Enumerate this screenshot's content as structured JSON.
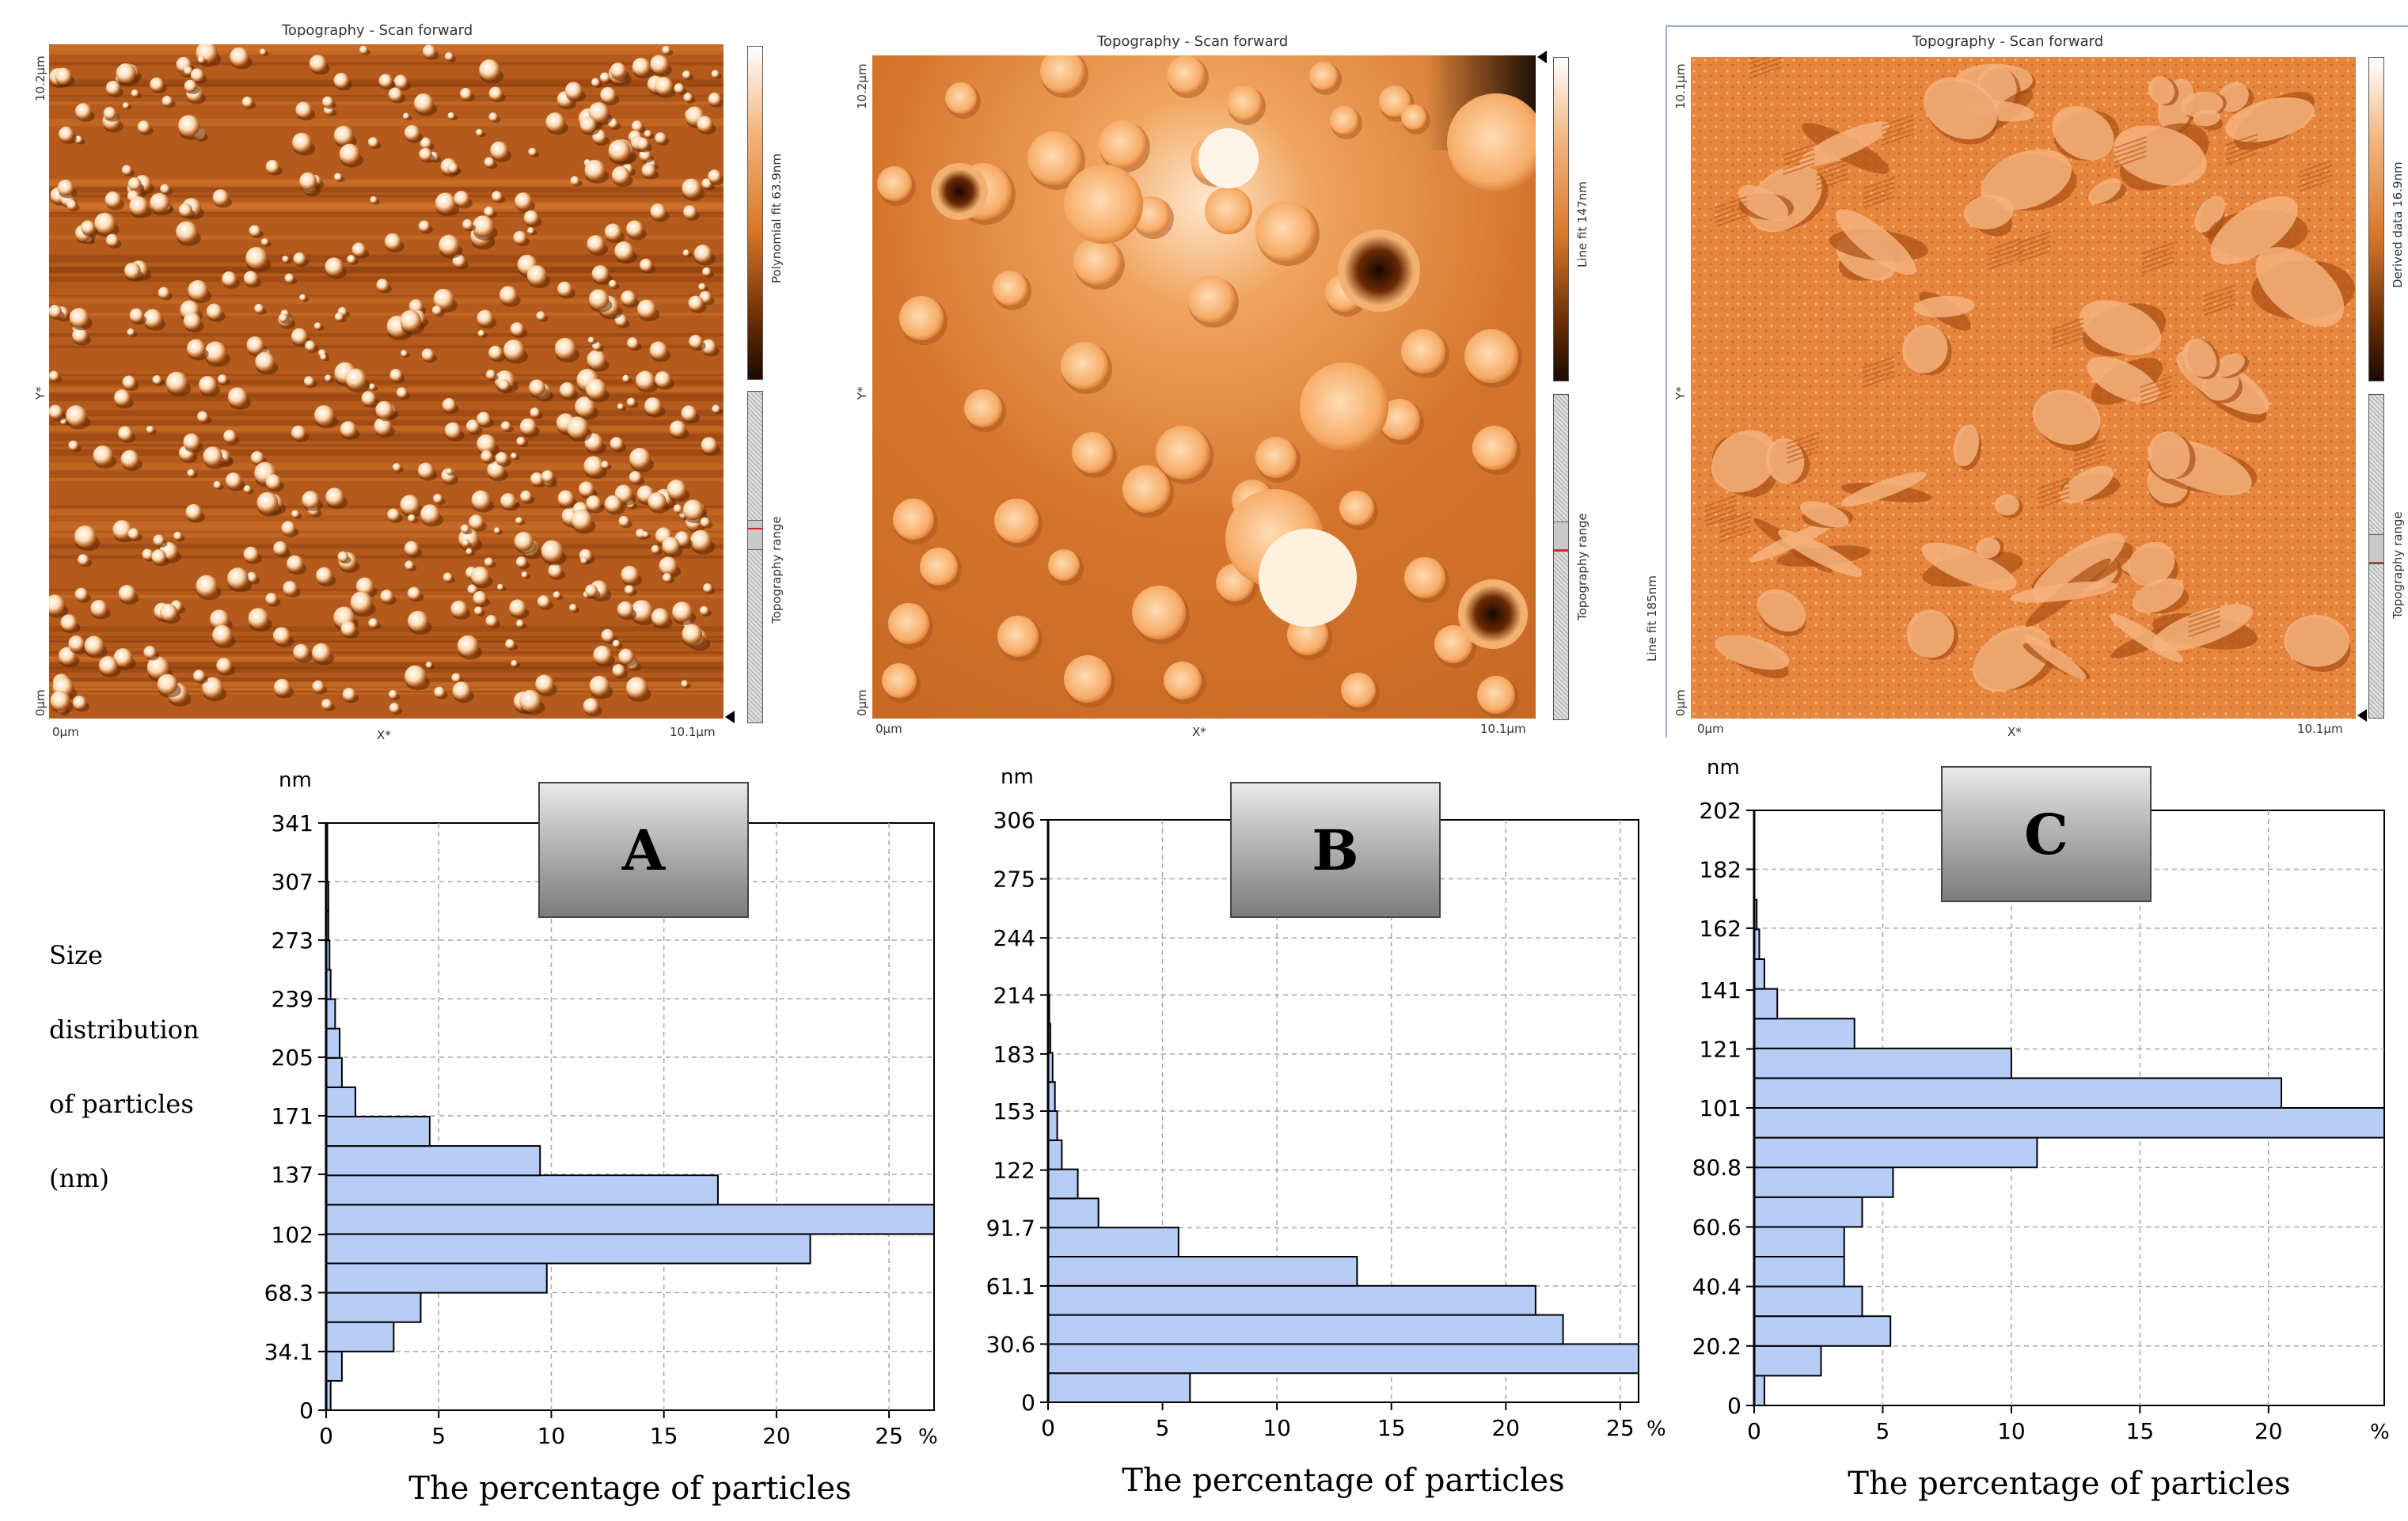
{
  "colors": {
    "bar_fill": "#b8cdf5",
    "bar_stroke": "#000000",
    "grid": "#a8a8a8",
    "scan_bg": "#d7762c",
    "scan_dark": "#7a3206",
    "scan_light": "#ffe3c6"
  },
  "afm_panels": [
    {
      "title": "Topography - Scan forward",
      "y_top": "10.2µm",
      "y_mid": "Y*",
      "y_bottom": "0µm",
      "x_left": "0µm",
      "x_mid": "X*",
      "x_right": "10.1µm",
      "colorbar_label": "Polynomial fit 63.9nm",
      "range_label": "Topography range",
      "left_label": ""
    },
    {
      "title": "Topography - Scan forward",
      "y_top": "10.2µm",
      "y_mid": "Y*",
      "y_bottom": "0µm",
      "x_left": "0µm",
      "x_mid": "X*",
      "x_right": "10.1µm",
      "colorbar_label": "Line fit 147nm",
      "range_label": "Topography range",
      "left_label": ""
    },
    {
      "title": "Topography - Scan forward",
      "y_top": "10.1µm",
      "y_mid": "Y*",
      "y_bottom": "0µm",
      "x_left": "0µm",
      "x_mid": "X*",
      "x_right": "10.1µm",
      "colorbar_label": "Derived data 16.9nm",
      "range_label": "Topography range",
      "left_label": "Line fit 185nm"
    }
  ],
  "side_label": {
    "line1": "Size",
    "line2": "distribution",
    "line3": "of particles",
    "line4": "(nm)"
  },
  "chart_data": [
    {
      "type": "bar",
      "orientation": "horizontal",
      "panel_label": "A",
      "title": "",
      "xlabel": "The percentage of particles",
      "ylabel": "nm",
      "x_unit": "%",
      "xlim": [
        0,
        27
      ],
      "ylim": [
        0,
        341
      ],
      "x_ticks": [
        "0",
        "5",
        "10",
        "15",
        "20",
        "25"
      ],
      "y_ticks": [
        {
          "value": 0,
          "label": "0"
        },
        {
          "value": 34.1,
          "label": "34.1"
        },
        {
          "value": 68.3,
          "label": "68.3"
        },
        {
          "value": 102,
          "label": "102"
        },
        {
          "value": 137,
          "label": "137"
        },
        {
          "value": 171,
          "label": "171"
        },
        {
          "value": 205,
          "label": "205"
        },
        {
          "value": 239,
          "label": "239"
        },
        {
          "value": 273,
          "label": "273"
        },
        {
          "value": 307,
          "label": "307"
        },
        {
          "value": 341,
          "label": "341"
        }
      ],
      "bin_width": 17.05,
      "bins": [
        {
          "bin_start": 0,
          "value": 0.2
        },
        {
          "bin_start": 17.05,
          "value": 0.7
        },
        {
          "bin_start": 34.1,
          "value": 3.0
        },
        {
          "bin_start": 51.15,
          "value": 4.2
        },
        {
          "bin_start": 68.2,
          "value": 9.8
        },
        {
          "bin_start": 85.25,
          "value": 21.5
        },
        {
          "bin_start": 102.3,
          "value": 27.0
        },
        {
          "bin_start": 119.35,
          "value": 17.4
        },
        {
          "bin_start": 136.4,
          "value": 9.5
        },
        {
          "bin_start": 153.45,
          "value": 4.6
        },
        {
          "bin_start": 170.5,
          "value": 1.3
        },
        {
          "bin_start": 187.55,
          "value": 0.7
        },
        {
          "bin_start": 204.6,
          "value": 0.6
        },
        {
          "bin_start": 221.65,
          "value": 0.4
        },
        {
          "bin_start": 238.7,
          "value": 0.2
        },
        {
          "bin_start": 255.75,
          "value": 0.15
        },
        {
          "bin_start": 272.8,
          "value": 0.1
        },
        {
          "bin_start": 289.85,
          "value": 0.1
        },
        {
          "bin_start": 306.9,
          "value": 0.05
        },
        {
          "bin_start": 323.95,
          "value": 0.05
        }
      ]
    },
    {
      "type": "bar",
      "orientation": "horizontal",
      "panel_label": "B",
      "title": "",
      "xlabel": "The percentage of particles",
      "ylabel": "nm",
      "x_unit": "%",
      "xlim": [
        0,
        25.8
      ],
      "ylim": [
        0,
        306
      ],
      "x_ticks": [
        "0",
        "5",
        "10",
        "15",
        "20",
        "25"
      ],
      "y_ticks": [
        {
          "value": 0,
          "label": "0"
        },
        {
          "value": 30.6,
          "label": "30.6"
        },
        {
          "value": 61.1,
          "label": "61.1"
        },
        {
          "value": 91.7,
          "label": "91.7"
        },
        {
          "value": 122,
          "label": "122"
        },
        {
          "value": 153,
          "label": "153"
        },
        {
          "value": 183,
          "label": "183"
        },
        {
          "value": 214,
          "label": "214"
        },
        {
          "value": 244,
          "label": "244"
        },
        {
          "value": 275,
          "label": "275"
        },
        {
          "value": 306,
          "label": "306"
        }
      ],
      "bin_width": 15.3,
      "bins": [
        {
          "bin_start": 0,
          "value": 6.2
        },
        {
          "bin_start": 15.3,
          "value": 25.8
        },
        {
          "bin_start": 30.6,
          "value": 22.5
        },
        {
          "bin_start": 45.9,
          "value": 21.3
        },
        {
          "bin_start": 61.2,
          "value": 13.5
        },
        {
          "bin_start": 76.5,
          "value": 5.7
        },
        {
          "bin_start": 91.8,
          "value": 2.2
        },
        {
          "bin_start": 107.1,
          "value": 1.3
        },
        {
          "bin_start": 122.4,
          "value": 0.6
        },
        {
          "bin_start": 137.7,
          "value": 0.4
        },
        {
          "bin_start": 153,
          "value": 0.3
        },
        {
          "bin_start": 168.3,
          "value": 0.2
        },
        {
          "bin_start": 183.6,
          "value": 0.1
        },
        {
          "bin_start": 198.9,
          "value": 0.05
        }
      ]
    },
    {
      "type": "bar",
      "orientation": "horizontal",
      "panel_label": "C",
      "title": "",
      "xlabel": "The percentage of particles",
      "ylabel": "nm",
      "x_unit": "%",
      "xlim": [
        0,
        24.5
      ],
      "ylim": [
        0,
        202
      ],
      "x_ticks": [
        "0",
        "5",
        "10",
        "15",
        "20"
      ],
      "y_ticks": [
        {
          "value": 0,
          "label": "0"
        },
        {
          "value": 20.2,
          "label": "20.2"
        },
        {
          "value": 40.4,
          "label": "40.4"
        },
        {
          "value": 60.6,
          "label": "60.6"
        },
        {
          "value": 80.8,
          "label": "80.8"
        },
        {
          "value": 101,
          "label": "101"
        },
        {
          "value": 121,
          "label": "121"
        },
        {
          "value": 141,
          "label": "141"
        },
        {
          "value": 162,
          "label": "162"
        },
        {
          "value": 182,
          "label": "182"
        },
        {
          "value": 202,
          "label": "202"
        }
      ],
      "bin_width": 10.1,
      "bins": [
        {
          "bin_start": 0,
          "value": 0.4
        },
        {
          "bin_start": 10.1,
          "value": 2.6
        },
        {
          "bin_start": 20.2,
          "value": 5.3
        },
        {
          "bin_start": 30.3,
          "value": 4.2
        },
        {
          "bin_start": 40.4,
          "value": 3.5
        },
        {
          "bin_start": 50.5,
          "value": 3.5
        },
        {
          "bin_start": 60.6,
          "value": 4.2
        },
        {
          "bin_start": 70.7,
          "value": 5.4
        },
        {
          "bin_start": 80.8,
          "value": 11.0
        },
        {
          "bin_start": 90.9,
          "value": 24.5
        },
        {
          "bin_start": 101.0,
          "value": 20.5
        },
        {
          "bin_start": 111.1,
          "value": 10.0
        },
        {
          "bin_start": 121.2,
          "value": 3.9
        },
        {
          "bin_start": 131.3,
          "value": 0.9
        },
        {
          "bin_start": 141.4,
          "value": 0.4
        },
        {
          "bin_start": 151.5,
          "value": 0.2
        },
        {
          "bin_start": 161.6,
          "value": 0.1
        }
      ]
    }
  ]
}
